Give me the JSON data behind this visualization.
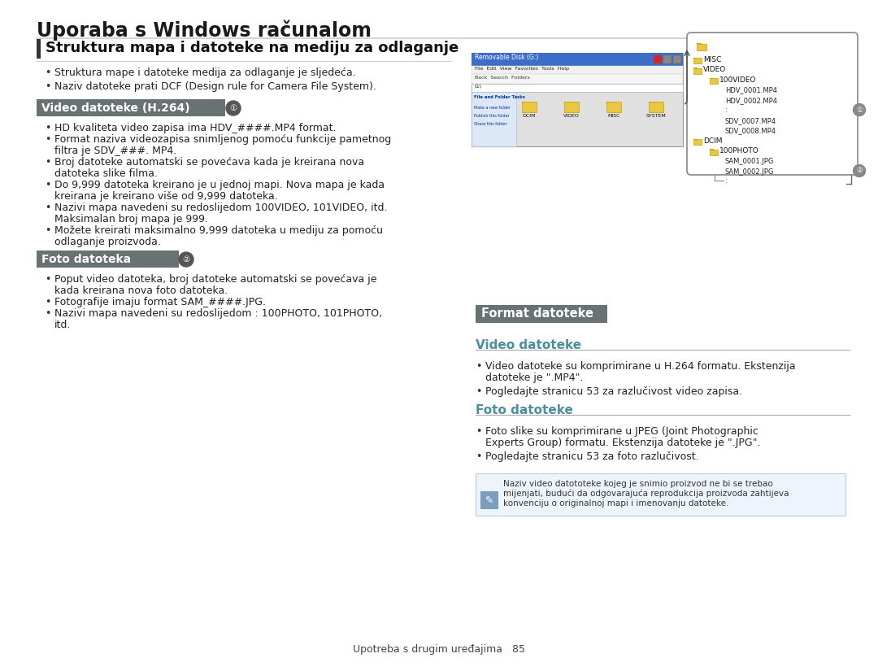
{
  "page_bg": "#ffffff",
  "main_title": "Uporaba s Windows računalom",
  "section1_title": "Struktura mapa i datoteke na mediju za odlaganje",
  "section1_bullet1": "Struktura mape i datoteke medija za odlaganje je sljedeća.",
  "section1_bullet2": "Naziv datoteke prati DCF (Design rule for Camera File System).",
  "subsec1_title": "Video datoteke (H.264)",
  "subsec1_num": "1",
  "subsec1_bullets": [
    "HD kvaliteta video zapisa ima HDV_####.MP4 format.",
    "Format naziva videozapisa snimljenog pomoću funkcije pametnog filtra je SDV_###. MP4.",
    "Broj datoteke automatski se povećava kada je kreirana nova datoteka slike filma.",
    "Do 9,999 datoteka kreirano je u jednoj mapi. Nova mapa kreirana je kada je kreirano više od 9,999 datoteka.",
    "Nazivi mapa navedeni su redoslijedom 100VIDEO, 101VIDEO, itd. Maksimalan broj mapa je 999.",
    "Možete kreirati maksimalno 9,999 datoteka u mediju za odlaganje pomoću proizvoda."
  ],
  "subsec2_title": "Foto datoteka",
  "subsec2_num": "2",
  "subsec2_bullets": [
    "Poput video datoteka, broj datoteke automatski se povećava kada je kreirana nova foto datoteka.",
    "Fotografije imaju format SAM_####.JPG.",
    "Nazivi mapa navedeni su redoslijedom : 100PHOTO, 101PHOTO, itd."
  ],
  "right_section_title": "Format datoteke",
  "right_subsec1_title": "Video datoteke",
  "right_subsec1_b1a": "Video datoteke su komprimirane u H.264 formatu. Ekstenzija",
  "right_subsec1_b1b": "datoteke je \".MP4\".",
  "right_subsec1_b2": "Pogledajte stranicu 53 za razlučivost video zapisa.",
  "right_subsec2_title": "Foto datoteke",
  "right_subsec2_b1a": "Foto slike su komprimirane u JPEG (Joint Photographic",
  "right_subsec2_b1b": "Experts Group) formatu. Ekstenzija datoteke je \".JPG\".",
  "right_subsec2_b2": "Pogledajte stranicu 53 za foto razlučivost.",
  "note_line1": "Naziv video datototeke kojeg je snimio proizvod ne bi se trebao",
  "note_line2": "mijenjati, budući da odgovarajuća reprodukcija proizvoda zahtijeva",
  "note_line3": "konvenciju o originalnoj mapi i imenovanju datoteke.",
  "footer_text": "Upotreba s drugim uređajima   85",
  "subsec_header_bg": "#697272",
  "subsec_header_fg": "#ffffff",
  "right_subsec_title_color": "#4a8fa0",
  "tree_folder_color": "#e8c840",
  "explorer_title": "Removable Disk (G:)",
  "explorer_menu": "File  Edit  View  Favorites  Tools  Help",
  "explorer_folders": [
    "DCIM",
    "VIDEO",
    "MISC",
    "SYSTEM"
  ],
  "tree_nodes": [
    {
      "label": "MISC",
      "lv": 1,
      "folder": true
    },
    {
      "label": "VIDEO",
      "lv": 1,
      "folder": true
    },
    {
      "label": "100VIDEO",
      "lv": 2,
      "folder": true
    },
    {
      "label": "HDV_0001.MP4",
      "lv": 3,
      "folder": false
    },
    {
      "label": "HDV_0002.MP4",
      "lv": 3,
      "folder": false
    },
    {
      "label": ":",
      "lv": 3,
      "folder": false
    },
    {
      "label": "SDV_0007.MP4",
      "lv": 3,
      "folder": false
    },
    {
      "label": "SDV_0008.MP4",
      "lv": 3,
      "folder": false
    },
    {
      "label": "DCIM",
      "lv": 1,
      "folder": true
    },
    {
      "label": "100PHOTO",
      "lv": 2,
      "folder": true
    },
    {
      "label": "SAM_0001.JPG",
      "lv": 3,
      "folder": false
    },
    {
      "label": "SAM_0002.JPG",
      "lv": 3,
      "folder": false
    },
    {
      "label": ":",
      "lv": 3,
      "folder": false
    }
  ]
}
